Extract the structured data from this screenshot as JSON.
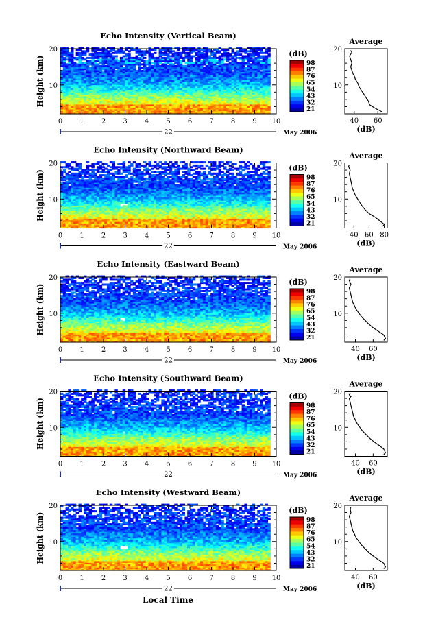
{
  "figure": {
    "x_axis_title": "Local Time",
    "date_label": "May 2006",
    "day_label": "22",
    "colorbar_unit": "(dB)",
    "profile_title": "Average",
    "profile_xlabel": "(dB)"
  },
  "chart_data": [
    {
      "type": "heatmap",
      "title": "Echo Intensity (Vertical Beam)",
      "xlabel": "Local Time",
      "ylabel": "Height (km)",
      "xlim": [
        0,
        10
      ],
      "x_ticks": [
        0,
        1,
        2,
        3,
        4,
        5,
        6,
        7,
        8,
        9,
        10
      ],
      "ylim": [
        2,
        20
      ],
      "y_ticks": [
        10,
        20
      ],
      "colorbar": {
        "unit": "(dB)",
        "ticks": [
          21,
          32,
          43,
          54,
          65,
          76,
          87,
          98
        ]
      },
      "profile": {
        "title": "Average",
        "xlabel": "(dB)",
        "x_ticks": [
          40,
          60
        ],
        "xlim": [
          32,
          68
        ],
        "points": [
          [
            64,
            2.5
          ],
          [
            58,
            3.5
          ],
          [
            53,
            4.5
          ],
          [
            52,
            5.5
          ],
          [
            50,
            6.5
          ],
          [
            48,
            7.5
          ],
          [
            46,
            8.5
          ],
          [
            44,
            9.5
          ],
          [
            43,
            10.5
          ],
          [
            41,
            11.5
          ],
          [
            40,
            12.5
          ],
          [
            39,
            13
          ],
          [
            38,
            14
          ],
          [
            37,
            15
          ],
          [
            38,
            16
          ],
          [
            37,
            17
          ],
          [
            36,
            18
          ],
          [
            38,
            19
          ],
          [
            37,
            19.5
          ]
        ]
      }
    },
    {
      "type": "heatmap",
      "title": "Echo Intensity (Northward Beam)",
      "xlabel": "Local Time",
      "ylabel": "Height (km)",
      "xlim": [
        0,
        10
      ],
      "x_ticks": [
        0,
        1,
        2,
        3,
        4,
        5,
        6,
        7,
        8,
        9,
        10
      ],
      "ylim": [
        2,
        20
      ],
      "y_ticks": [
        10,
        20
      ],
      "colorbar": {
        "unit": "(dB)",
        "ticks": [
          21,
          32,
          43,
          54,
          65,
          76,
          87,
          98
        ]
      },
      "profile": {
        "title": "Average",
        "xlabel": "(dB)",
        "x_ticks": [
          40,
          60,
          80
        ],
        "xlim": [
          28,
          84
        ],
        "points": [
          [
            78,
            2.5
          ],
          [
            80,
            3
          ],
          [
            74,
            4
          ],
          [
            68,
            5
          ],
          [
            60,
            6
          ],
          [
            55,
            7
          ],
          [
            51,
            8
          ],
          [
            48,
            9
          ],
          [
            45,
            10
          ],
          [
            42,
            11
          ],
          [
            40,
            12
          ],
          [
            38,
            13
          ],
          [
            37,
            14
          ],
          [
            36,
            15
          ],
          [
            35,
            16
          ],
          [
            34,
            17
          ],
          [
            35,
            18
          ],
          [
            33,
            19
          ],
          [
            34,
            19.5
          ]
        ]
      }
    },
    {
      "type": "heatmap",
      "title": "Echo Intensity (Eastward Beam)",
      "xlabel": "Local Time",
      "ylabel": "Height (km)",
      "xlim": [
        0,
        10
      ],
      "x_ticks": [
        0,
        1,
        2,
        3,
        4,
        5,
        6,
        7,
        8,
        9,
        10
      ],
      "ylim": [
        2,
        20
      ],
      "y_ticks": [
        10,
        20
      ],
      "colorbar": {
        "unit": "(dB)",
        "ticks": [
          21,
          32,
          43,
          54,
          65,
          76,
          87,
          98
        ]
      },
      "profile": {
        "title": "Average",
        "xlabel": "(dB)",
        "x_ticks": [
          40,
          60
        ],
        "xlim": [
          28,
          76
        ],
        "points": [
          [
            72,
            2.5
          ],
          [
            74,
            3
          ],
          [
            72,
            4
          ],
          [
            66,
            5
          ],
          [
            60,
            6
          ],
          [
            55,
            7
          ],
          [
            51,
            8
          ],
          [
            47,
            9
          ],
          [
            44,
            10
          ],
          [
            41,
            11
          ],
          [
            39,
            12
          ],
          [
            37,
            13
          ],
          [
            36,
            14
          ],
          [
            35,
            15
          ],
          [
            34,
            16
          ],
          [
            33,
            17
          ],
          [
            35,
            18
          ],
          [
            33,
            19
          ],
          [
            34,
            19.5
          ]
        ]
      }
    },
    {
      "type": "heatmap",
      "title": "Echo Intensity (Southward Beam)",
      "xlabel": "Local Time",
      "ylabel": "Height (km)",
      "xlim": [
        0,
        10
      ],
      "x_ticks": [
        0,
        1,
        2,
        3,
        4,
        5,
        6,
        7,
        8,
        9,
        10
      ],
      "ylim": [
        2,
        20
      ],
      "y_ticks": [
        10,
        20
      ],
      "colorbar": {
        "unit": "(dB)",
        "ticks": [
          21,
          32,
          43,
          54,
          65,
          76,
          87,
          98
        ]
      },
      "profile": {
        "title": "Average",
        "xlabel": "(dB)",
        "x_ticks": [
          40,
          60
        ],
        "xlim": [
          28,
          76
        ],
        "points": [
          [
            72,
            2.5
          ],
          [
            74,
            3
          ],
          [
            72,
            4
          ],
          [
            67,
            5
          ],
          [
            61,
            6
          ],
          [
            56,
            7
          ],
          [
            52,
            8
          ],
          [
            48,
            9
          ],
          [
            45,
            10
          ],
          [
            42,
            11
          ],
          [
            40,
            12
          ],
          [
            38,
            13
          ],
          [
            37,
            14
          ],
          [
            36,
            15
          ],
          [
            35,
            16
          ],
          [
            34,
            17
          ],
          [
            33,
            18
          ],
          [
            35,
            18.5
          ],
          [
            33,
            19
          ],
          [
            34,
            19.5
          ]
        ]
      }
    },
    {
      "type": "heatmap",
      "title": "Echo Intensity (Westward Beam)",
      "xlabel": "Local Time",
      "ylabel": "Height (km)",
      "xlim": [
        0,
        10
      ],
      "x_ticks": [
        0,
        1,
        2,
        3,
        4,
        5,
        6,
        7,
        8,
        9,
        10
      ],
      "ylim": [
        2,
        20
      ],
      "y_ticks": [
        10,
        20
      ],
      "colorbar": {
        "unit": "(dB)",
        "ticks": [
          21,
          32,
          43,
          54,
          65,
          76,
          87,
          98
        ]
      },
      "profile": {
        "title": "Average",
        "xlabel": "(dB)",
        "x_ticks": [
          40,
          60
        ],
        "xlim": [
          28,
          76
        ],
        "points": [
          [
            72,
            2.5
          ],
          [
            74,
            3
          ],
          [
            72,
            4
          ],
          [
            66,
            5
          ],
          [
            60,
            6
          ],
          [
            55,
            7
          ],
          [
            51,
            8
          ],
          [
            47,
            9
          ],
          [
            44,
            10
          ],
          [
            41,
            11
          ],
          [
            39,
            12
          ],
          [
            37,
            13
          ],
          [
            36,
            14
          ],
          [
            35,
            15
          ],
          [
            34,
            16
          ],
          [
            33,
            17
          ],
          [
            35,
            18
          ],
          [
            34,
            19
          ],
          [
            35,
            19.5
          ]
        ]
      }
    }
  ]
}
